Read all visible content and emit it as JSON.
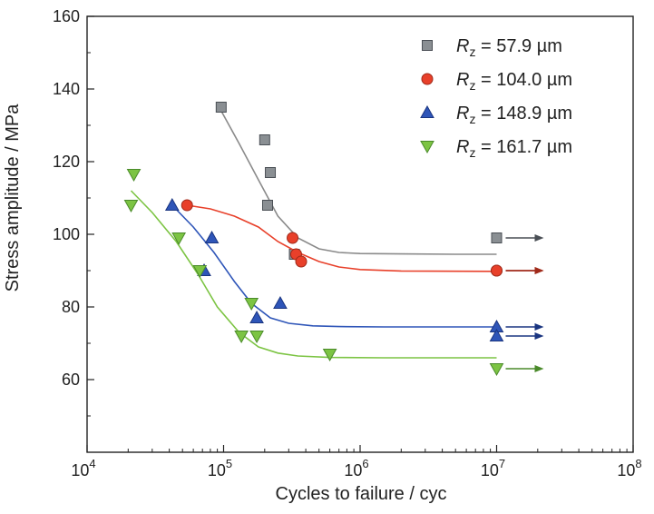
{
  "chart_data": {
    "type": "scatter",
    "title": "",
    "xlabel": "Cycles to failure / cyc",
    "ylabel": "Stress amplitude / MPa",
    "xscale": "log",
    "xlim": [
      10000,
      100000000
    ],
    "ylim": [
      40,
      160
    ],
    "grid": false,
    "legend_position": "top-right",
    "x_ticks": [
      {
        "value": 10000,
        "base": "10",
        "exp": "4"
      },
      {
        "value": 100000,
        "base": "10",
        "exp": "5"
      },
      {
        "value": 1000000,
        "base": "10",
        "exp": "6"
      },
      {
        "value": 10000000,
        "base": "10",
        "exp": "7"
      },
      {
        "value": 100000000,
        "base": "10",
        "exp": "8"
      }
    ],
    "y_ticks": [
      "60",
      "80",
      "100",
      "120",
      "140",
      "160"
    ],
    "series": [
      {
        "name": "Rz = 57.9 µm",
        "label_var": "R",
        "label_sub": "z",
        "label_rest": " = 57.9 µm",
        "marker": "square",
        "color": "#8a8f93",
        "edge": "#4a4f55",
        "line_color": "#8a8a8a",
        "points": [
          [
            96000,
            135
          ],
          [
            200000,
            126
          ],
          [
            220000,
            117
          ],
          [
            210000,
            108
          ],
          [
            330000,
            94.5
          ],
          [
            10000000,
            99
          ]
        ],
        "runouts": [
          [
            10000000,
            99
          ]
        ],
        "fit_x": [
          96000,
          130000,
          180000,
          250000,
          350000,
          500000,
          700000,
          1000000,
          2000000,
          5000000,
          10000000
        ],
        "fit_y": [
          134,
          125,
          115,
          105,
          99,
          96,
          95,
          94.7,
          94.6,
          94.5,
          94.5
        ]
      },
      {
        "name": "Rz = 104.0 µm",
        "label_var": "R",
        "label_sub": "z",
        "label_rest": " = 104.0 µm",
        "marker": "circle",
        "color": "#e8402a",
        "edge": "#a02a1a",
        "line_color": "#e8402a",
        "points": [
          [
            54000,
            108
          ],
          [
            320000,
            99
          ],
          [
            340000,
            94.5
          ],
          [
            370000,
            92.5
          ],
          [
            10000000,
            90
          ],
          [
            10000000,
            90
          ]
        ],
        "runouts": [
          [
            10000000,
            90
          ],
          [
            10000000,
            90
          ]
        ],
        "fit_x": [
          54000,
          80000,
          120000,
          180000,
          250000,
          350000,
          500000,
          700000,
          1000000,
          2000000,
          10000000
        ],
        "fit_y": [
          108,
          107,
          105,
          102,
          98,
          95,
          92.5,
          91,
          90.3,
          89.9,
          89.8
        ]
      },
      {
        "name": "Rz = 148.9 µm",
        "label_var": "R",
        "label_sub": "z",
        "label_rest": " = 148.9 µm",
        "marker": "triangle-up",
        "color": "#2e55b8",
        "edge": "#1a3580",
        "line_color": "#2e55b8",
        "points": [
          [
            42000,
            108
          ],
          [
            82000,
            99
          ],
          [
            72000,
            90
          ],
          [
            175000,
            77
          ],
          [
            260000,
            81
          ],
          [
            10000000,
            74.5
          ],
          [
            10000000,
            72
          ]
        ],
        "runouts": [
          [
            10000000,
            74.5
          ],
          [
            10000000,
            72
          ]
        ],
        "fit_x": [
          42000,
          60000,
          85000,
          120000,
          160000,
          220000,
          300000,
          450000,
          700000,
          1500000,
          10000000
        ],
        "fit_y": [
          108,
          102,
          95,
          87,
          81,
          77,
          75.5,
          74.8,
          74.6,
          74.5,
          74.5
        ]
      },
      {
        "name": "Rz = 161.7 µm",
        "label_var": "R",
        "label_sub": "z",
        "label_rest": " = 161.7 µm",
        "marker": "triangle-down",
        "color": "#7cc443",
        "edge": "#4a8a2a",
        "line_color": "#7cc443",
        "points": [
          [
            21000,
            108
          ],
          [
            22000,
            116.5
          ],
          [
            47000,
            99
          ],
          [
            67000,
            90
          ],
          [
            160000,
            81
          ],
          [
            135000,
            72
          ],
          [
            175000,
            72
          ],
          [
            600000,
            67
          ],
          [
            10000000,
            63
          ]
        ],
        "runouts": [
          [
            10000000,
            63
          ]
        ],
        "fit_x": [
          21000,
          30000,
          45000,
          65000,
          90000,
          130000,
          180000,
          250000,
          350000,
          600000,
          1500000,
          10000000
        ],
        "fit_y": [
          112,
          106,
          98,
          89,
          80,
          73,
          69,
          67.3,
          66.5,
          66.1,
          66,
          66
        ]
      }
    ]
  }
}
